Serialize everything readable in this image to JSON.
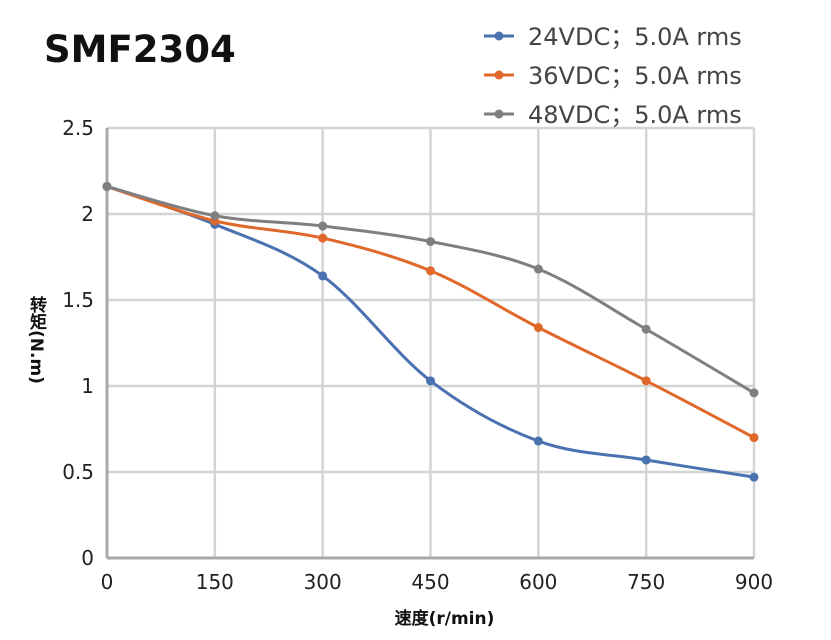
{
  "chart_data": {
    "type": "line",
    "title": "SMF2304",
    "xlabel": "速度(r/min)",
    "ylabel": "转矩(N.m)",
    "x": [
      0,
      150,
      300,
      450,
      600,
      750,
      900
    ],
    "xlim": [
      0,
      900
    ],
    "ylim": [
      0,
      2.5
    ],
    "xticks": [
      "0",
      "150",
      "300",
      "450",
      "600",
      "750",
      "900"
    ],
    "yticks": [
      "0",
      "0.5",
      "1",
      "1.5",
      "2",
      "2.5"
    ],
    "grid": true,
    "legend_position": "top-right",
    "series": [
      {
        "name": "24VDC；5.0A rms",
        "color": "#4a72b0",
        "values": [
          2.16,
          1.94,
          1.64,
          1.03,
          0.68,
          0.57,
          0.47
        ]
      },
      {
        "name": "36VDC；5.0A rms",
        "color": "#e0682a",
        "values": [
          2.16,
          1.96,
          1.86,
          1.67,
          1.34,
          1.03,
          0.7
        ]
      },
      {
        "name": "48VDC；5.0A rms",
        "color": "#7f7f81",
        "values": [
          2.16,
          1.99,
          1.93,
          1.84,
          1.68,
          1.33,
          0.96
        ]
      }
    ]
  }
}
